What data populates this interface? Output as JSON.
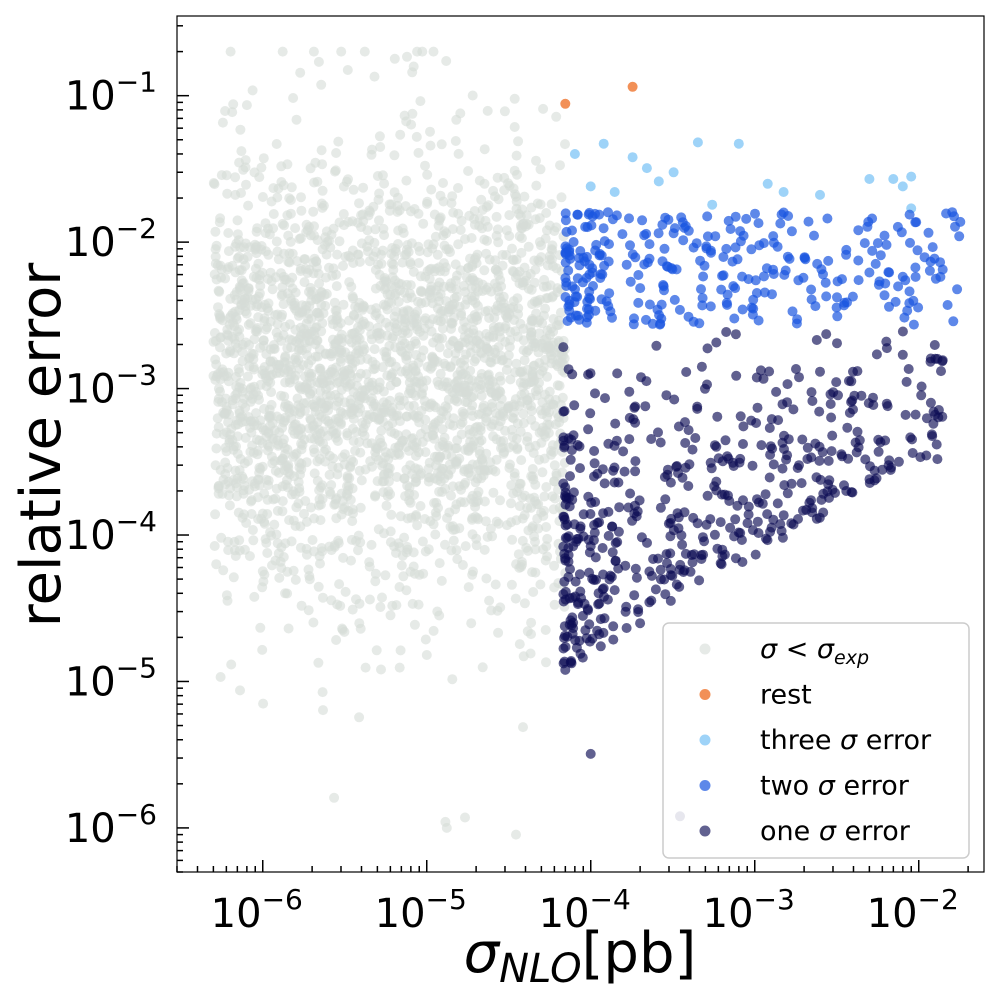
{
  "chart_data": {
    "type": "scatter",
    "xlabel": "σNLO[pb]",
    "ylabel": "relative error",
    "x_scale": "log",
    "y_scale": "log",
    "xlim": [
      3e-07,
      0.025
    ],
    "ylim": [
      5e-07,
      0.35
    ],
    "grid": false,
    "legend_position": "lower-right",
    "x_ticks": [
      {
        "value": 1e-06,
        "base": "10",
        "exp": "−6"
      },
      {
        "value": 1e-05,
        "base": "10",
        "exp": "−5"
      },
      {
        "value": 0.0001,
        "base": "10",
        "exp": "−4"
      },
      {
        "value": 0.001,
        "base": "10",
        "exp": "−3"
      },
      {
        "value": 0.01,
        "base": "10",
        "exp": "−2"
      }
    ],
    "y_ticks": [
      {
        "value": 1e-06,
        "base": "10",
        "exp": "−6"
      },
      {
        "value": 1e-05,
        "base": "10",
        "exp": "−5"
      },
      {
        "value": 0.0001,
        "base": "10",
        "exp": "−4"
      },
      {
        "value": 0.001,
        "base": "10",
        "exp": "−3"
      },
      {
        "value": 0.01,
        "base": "10",
        "exp": "−2"
      },
      {
        "value": 0.1,
        "base": "10",
        "exp": "−1"
      }
    ],
    "series": [
      {
        "name": "σ < σexp",
        "label_html": "σ < σ<tspan font-size='20' dy='6' font-style='italic'>exp</tspan>",
        "color": "#d6dcd7",
        "opacity": 0.6,
        "generated_count": 2600,
        "x_range": [
          5e-07,
          7e-05
        ],
        "y_range": [
          1e-06,
          0.2
        ],
        "x": [
          2.2e-06,
          4.8e-06,
          1.1e-05,
          6.8e-07,
          1.3e-05,
          3.5e-05
        ],
        "y": [
          0.17,
          0.135,
          0.2,
          0.0009,
          1.1e-06,
          9e-07
        ]
      },
      {
        "name": "rest",
        "color": "#f07d3a",
        "opacity": 0.85,
        "x": [
          7e-05,
          0.00018
        ],
        "y": [
          0.088,
          0.115
        ]
      },
      {
        "name": "three σ error",
        "label_prefix": "three ",
        "label_suffix": " error",
        "color": "#7ec4f5",
        "opacity": 0.75,
        "x": [
          8e-05,
          0.00012,
          0.00018,
          0.00026,
          0.00045,
          0.0008,
          0.0012,
          0.0015,
          0.0025,
          0.005,
          0.007,
          0.008,
          0.009,
          0.0001,
          0.00014,
          0.00022,
          0.00032,
          0.00055,
          0.009
        ],
        "y": [
          0.04,
          0.047,
          0.038,
          0.026,
          0.048,
          0.047,
          0.025,
          0.022,
          0.021,
          0.027,
          0.027,
          0.024,
          0.017,
          0.024,
          0.022,
          0.032,
          0.03,
          0.018,
          0.028
        ]
      },
      {
        "name": "two σ error",
        "label_prefix": "two ",
        "label_suffix": " error",
        "color": "#1a55e0",
        "opacity": 0.7,
        "generated_count": 300,
        "x_range": [
          7e-05,
          0.018
        ],
        "y_range": [
          0.0027,
          0.016
        ],
        "x": [
          0.016,
          0.014,
          0.008,
          0.0085,
          0.005,
          0.0035
        ],
        "y": [
          0.016,
          0.0065,
          0.0058,
          0.0034,
          0.0062,
          0.0037
        ]
      },
      {
        "name": "one σ error",
        "label_prefix": "one ",
        "label_suffix": " error",
        "color": "#0c0c55",
        "opacity": 0.65,
        "generated_count": 520,
        "x_range": [
          6.8e-05,
          0.014
        ],
        "y_range": [
          1.2e-05,
          0.0027
        ],
        "x": [
          0.0001,
          0.00035,
          0.013,
          0.008,
          7e-05,
          0.0002
        ],
        "y": [
          3.2e-06,
          1.2e-06,
          0.00033,
          0.0017,
          1.2e-05,
          2.5e-05
        ]
      }
    ]
  }
}
